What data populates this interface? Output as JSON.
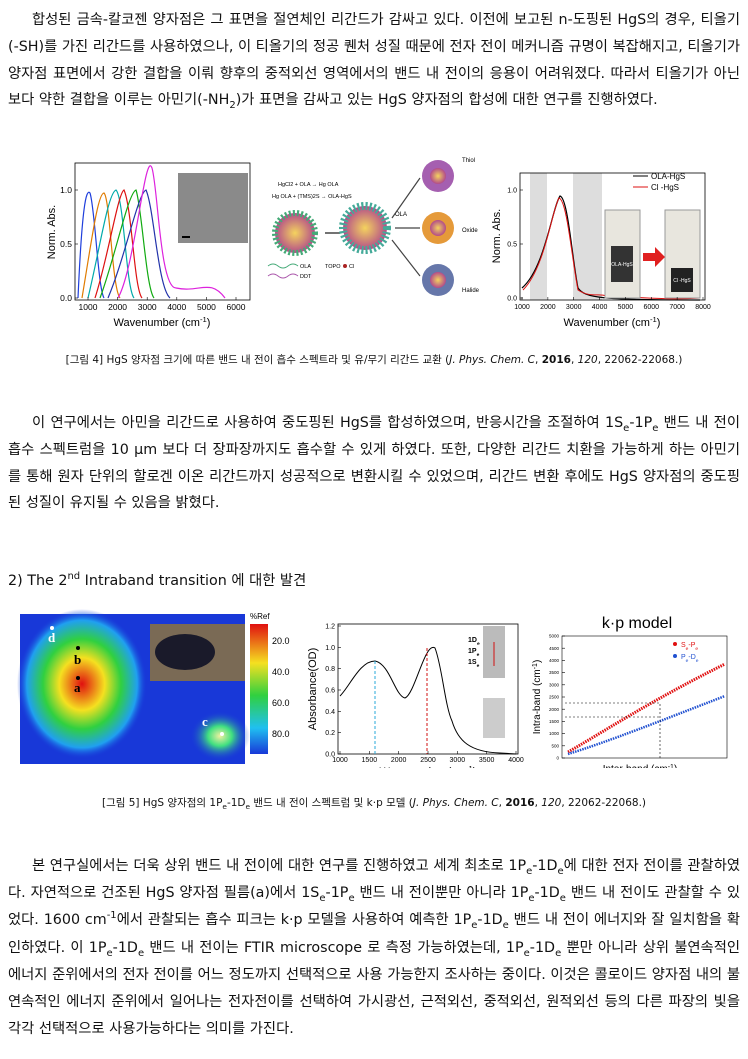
{
  "paragraphs": [
    [
      "합성된 금속-칼코젠 양자점은 그 표면을 절연체인 리간드가 감싸고 있다. 이전에 보고된 n-도핑된 HgS의 경우, 티올기(-SH)를 가진 리간드를 사용하였으나, 이 티올기의 정공 퀜처 성질 때문에 전자 전이 메커니즘 규명이 복잡해지고, 티올기가 양자점 표면에서 강한 결합을 이뤄 향후의 중적외선 영역에서의 밴드 내 전이의 응용이 어려워졌다. 따라서 티올기가 아닌 보다 약한 결합을 이루는 아민기(-NH",
      {
        "sub": "2"
      },
      ")가 표면을 감싸고 있는 HgS 양자점의 합성에 대한 연구를 진행하였다."
    ],
    [
      "이 연구에서는 아민을 리간드로 사용하여 중도핑된 HgS를 합성하였으며, 반응시간을 조절하여 1S",
      {
        "sub": "e"
      },
      "-1P",
      {
        "sub": "e"
      },
      " 밴드 내 전이 흡수 스펙트럼을 10 μm 보다 더 장파장까지도 흡수할 수 있게 하였다. 또한, 다양한 리간드 치환을 가능하게 하는 아민기를 통해 원자 단위의 할로겐 이온 리간드까지 성공적으로 변환시킬 수 있었으며, 리간드 변환 후에도 HgS 양자점의 중도핑된 성질이 유지될 수 있음을 밝혔다."
    ],
    [
      "본 연구실에서는 더욱 상위 밴드 내 전이에 대한 연구를 진행하였고 세계 최초로 1P",
      {
        "sub": "e"
      },
      "-1D",
      {
        "sub": "e"
      },
      "에 대한 전자 전이를 관찰하였다. 자연적으로 건조된 HgS 양자점 필름(a)에서 1S",
      {
        "sub": "e"
      },
      "-1P",
      {
        "sub": "e"
      },
      " 밴드 내 전이뿐만 아니라 1P",
      {
        "sub": "e"
      },
      "-1D",
      {
        "sub": "e"
      },
      " 밴드 내 전이도 관찰할 수 있었다. 1600 cm",
      {
        "sup": "-1"
      },
      "에서 관찰되는 흡수 피크는 k·p 모델을 사용하여 예측한 1P",
      {
        "sub": "e"
      },
      "-1D",
      {
        "sub": "e"
      },
      " 밴드 내 전이 에너지와 잘 일치함을 확인하였다. 이 1P",
      {
        "sub": "e"
      },
      "-1D",
      {
        "sub": "e"
      },
      " 밴드 내 전이는 FTIR microscope 로 측정 가능하였는데, 1P",
      {
        "sub": "e"
      },
      "-1D",
      {
        "sub": "e"
      },
      " 뿐만 아니라 상위 불연속적인 에너지 준위에서의 전자 전이를 어느 정도까지 선택적으로 사용 가능한지 조사하는 중이다. 이것은 콜로이드 양자점 내의 불연속적인 에너지 준위에서 일어나는 전자전이를 선택하여 가시광선, 근적외선, 중적외선, 원적외선 등의 다른 파장의 빛을 각각 선택적으로 사용가능하다는 의미를 가진다."
    ]
  ],
  "heading": [
    "2) The 2",
    {
      "sup": "nd"
    },
    " Intraband transition 에 대한 발견"
  ],
  "figure4": {
    "left_chart": {
      "y_label": "Norm. Abs.",
      "x_label": [
        "Wavenumber (cm",
        {
          "sup": "-1"
        },
        ")"
      ],
      "x_ticks": [
        "1000",
        "2000",
        "3000",
        "4000",
        "5000",
        "6000"
      ],
      "y_ticks": [
        "0.0",
        "0.5",
        "1.0"
      ]
    },
    "scheme": {
      "reaction_1": "HgCl2 + OLA → Hg OLA",
      "reaction_2": "Hg OLA + (TMS)2S → OLA-HgS",
      "center": "OLA",
      "thiol": "Thiol",
      "oxide": "Oxide",
      "halide": "Halide",
      "key_ola": "OLA",
      "key_ddt": "DDT",
      "key_topo": "TOPO",
      "key_cl": "Cl"
    },
    "right_chart": {
      "legend": [
        "OLA-HgS",
        "Cl -HgS"
      ],
      "y_label": "Norm. Abs.",
      "x_label": [
        "Wavenumber (cm",
        {
          "sup": "-1"
        },
        ")"
      ],
      "x_ticks": [
        "1000",
        "2000",
        "3000",
        "4000",
        "5000",
        "6000",
        "7000",
        "8000"
      ],
      "y_ticks": [
        "0.0",
        "0.5",
        "1.0"
      ],
      "vial_labels": [
        "OLA-HgS",
        "Cl -HgS"
      ]
    },
    "caption": [
      "[그림 4] HgS 양자점 크기에 따른 밴드 내 전이 흡수 스펙트라 및 유/무기 리간드 교환 (",
      {
        "i": "J. Phys. Chem. C"
      },
      ", ",
      {
        "b": "2016"
      },
      ", ",
      {
        "i": "120"
      },
      ", 22062-22068.)"
    ]
  },
  "figure5": {
    "map": {
      "points": [
        "d",
        "b",
        "a",
        "c"
      ],
      "colorbar_title": "%Ref",
      "colorbar_ticks": [
        "20.0",
        "40.0",
        "60.0",
        "80.0"
      ]
    },
    "spectrum": {
      "y_label": "Absorbance(OD)",
      "x_label": [
        "Wavenumber (cm",
        {
          "sup": "-1"
        },
        ")"
      ],
      "y_ticks": [
        "0.0",
        "0.2",
        "0.4",
        "0.6",
        "0.8",
        "1.0",
        "1.2"
      ],
      "x_ticks": [
        "1000",
        "1500",
        "2000",
        "2500",
        "3000",
        "3500",
        "4000"
      ],
      "levels": [
        [
          "1D",
          {
            "sub": "e"
          }
        ],
        [
          "1P",
          {
            "sub": "e"
          }
        ],
        [
          "1S",
          {
            "sub": "e"
          }
        ]
      ]
    },
    "kp": {
      "title": "k·p model",
      "y_label": [
        "Intra-band (cm",
        {
          "sup": "-1"
        },
        ")"
      ],
      "x_label": [
        "Inter-band (cm",
        {
          "sup": "-1"
        },
        ")"
      ],
      "legend": [
        [
          "S",
          {
            "sub": "e"
          },
          "-P",
          {
            "sub": "e"
          }
        ],
        [
          "P",
          {
            "sub": "e"
          },
          "-D",
          {
            "sub": "e"
          }
        ]
      ],
      "y_ticks": [
        "0",
        "500",
        "1000",
        "1500",
        "2000",
        "2500",
        "3000",
        "3500",
        "4000",
        "4500",
        "5000"
      ]
    },
    "caption": [
      "[그림 5] HgS 양자점의 1P",
      {
        "sub": "e"
      },
      "-1D",
      {
        "sub": "e"
      },
      " 밴드 내 전이 스펙트럼 및 k·p 모델 (",
      {
        "i": "J. Phys. Chem. C"
      },
      ", ",
      {
        "b": "2016"
      },
      ", ",
      {
        "i": "120"
      },
      ", 22062-22068.)"
    ]
  }
}
